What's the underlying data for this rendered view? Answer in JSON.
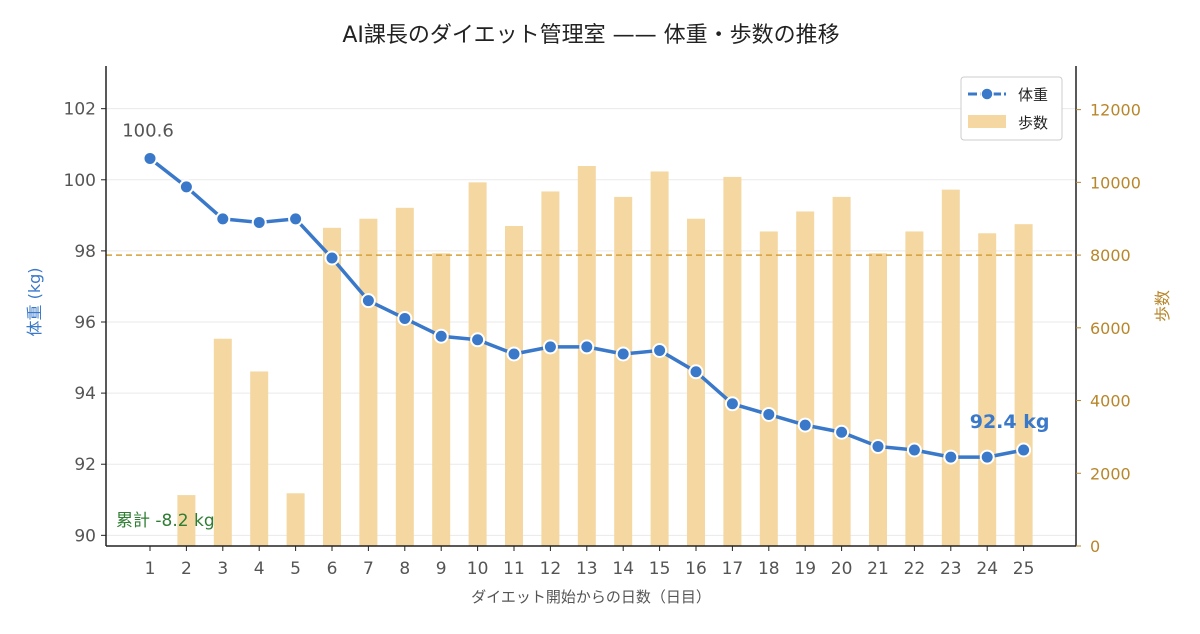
{
  "chart_data": {
    "type": "bar+line",
    "title": "AI課長のダイエット管理室 —— 体重・歩数の推移",
    "xlabel": "ダイエット開始からの日数（日目）",
    "ylabel_left": "体重 (kg)",
    "ylabel_right": "歩数",
    "categories": [
      "1",
      "2",
      "3",
      "4",
      "5",
      "6",
      "7",
      "8",
      "9",
      "10",
      "11",
      "12",
      "13",
      "14",
      "15",
      "16",
      "17",
      "18",
      "19",
      "20",
      "21",
      "22",
      "23",
      "24",
      "25"
    ],
    "ylim_left": [
      89.7,
      103.2
    ],
    "yticks_left": [
      "90",
      "92",
      "94",
      "96",
      "98",
      "100",
      "102"
    ],
    "ylim_right": [
      0,
      13200
    ],
    "yticks_right": [
      "0",
      "2000",
      "4000",
      "6000",
      "8000",
      "10000",
      "12000"
    ],
    "grid": "horizontal (left axis)",
    "legend_position": "top-right",
    "series": [
      {
        "name": "体重",
        "kind": "line",
        "axis": "left",
        "color": "#3a78c9",
        "values": [
          100.6,
          99.8,
          98.9,
          98.8,
          98.9,
          97.8,
          96.6,
          96.1,
          95.6,
          95.5,
          95.1,
          95.3,
          95.3,
          95.1,
          95.2,
          94.6,
          93.7,
          93.4,
          93.1,
          92.9,
          92.5,
          92.4,
          92.2,
          92.2,
          92.4
        ]
      },
      {
        "name": "歩数",
        "kind": "bar",
        "axis": "right",
        "color": "#f4d7a1",
        "values": [
          0,
          1400,
          5700,
          4800,
          1450,
          8750,
          9000,
          9300,
          8050,
          10000,
          8800,
          9750,
          10450,
          9600,
          10300,
          9000,
          10150,
          8650,
          9200,
          9600,
          8050,
          8650,
          9800,
          8600,
          8850
        ]
      }
    ],
    "reference_line": {
      "axis": "right",
      "value": 8000,
      "color": "#d4a03a"
    },
    "annotations": {
      "start_value": "100.6",
      "end_value": "92.4 kg",
      "cumulative": "累計 -8.2 kg",
      "cumulative_color": "#2e7d32"
    },
    "colors": {
      "left_axis_label": "#3a78c9",
      "right_axis": "#b8862b"
    }
  }
}
